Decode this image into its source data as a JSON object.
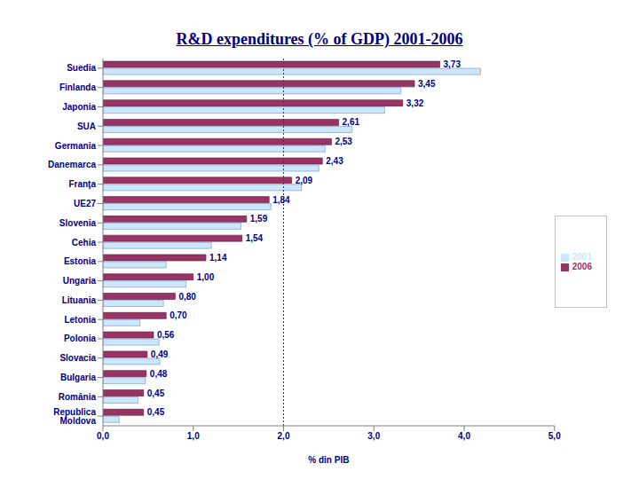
{
  "chart_data": {
    "type": "bar",
    "title": "R&D expenditures (% of GDP) 2001-2006",
    "orientation": "horizontal",
    "x_label": "% din PIB",
    "categories": [
      "Suedia",
      "Finlanda",
      "Japonia",
      "SUA",
      "Germania",
      "Danemarca",
      "Franţa",
      "UE27",
      "Slovenia",
      "Cehia",
      "Estonia",
      "Ungaria",
      "Lituania",
      "Letonia",
      "Polonia",
      "Slovacia",
      "Bulgaria",
      "România",
      "Republica Moldova"
    ],
    "series": [
      {
        "name": "2006",
        "color": "#993366",
        "values": [
          3.73,
          3.45,
          3.32,
          2.61,
          2.53,
          2.43,
          2.09,
          1.84,
          1.59,
          1.54,
          1.14,
          1.0,
          0.8,
          0.7,
          0.56,
          0.49,
          0.48,
          0.45,
          0.45
        ],
        "value_labels": [
          "3,73",
          "3,45",
          "3,32",
          "2,61",
          "2,53",
          "2,43",
          "2,09",
          "1,84",
          "1,59",
          "1,54",
          "1,14",
          "1,00",
          "0,80",
          "0,70",
          "0,56",
          "0,49",
          "0,48",
          "0,45",
          "0,45"
        ],
        "data_labels": true
      },
      {
        "name": "2001",
        "color": "#cce6ff",
        "values": [
          4.18,
          3.3,
          3.12,
          2.76,
          2.46,
          2.39,
          2.2,
          1.86,
          1.53,
          1.2,
          0.7,
          0.92,
          0.67,
          0.41,
          0.62,
          0.63,
          0.47,
          0.39,
          0.18
        ]
      }
    ],
    "xlim": [
      0,
      5
    ],
    "xticks": [
      {
        "value": 0,
        "label": "0,0"
      },
      {
        "value": 1,
        "label": "1,0"
      },
      {
        "value": 2,
        "label": "2,0"
      },
      {
        "value": 3,
        "label": "3,0"
      },
      {
        "value": 4,
        "label": "4,0"
      },
      {
        "value": 5,
        "label": "5,0"
      }
    ],
    "reference_lines": [
      {
        "x": 2,
        "color": "#cc0000",
        "line_style": "dotted"
      }
    ],
    "legend": "right",
    "grid": false
  }
}
